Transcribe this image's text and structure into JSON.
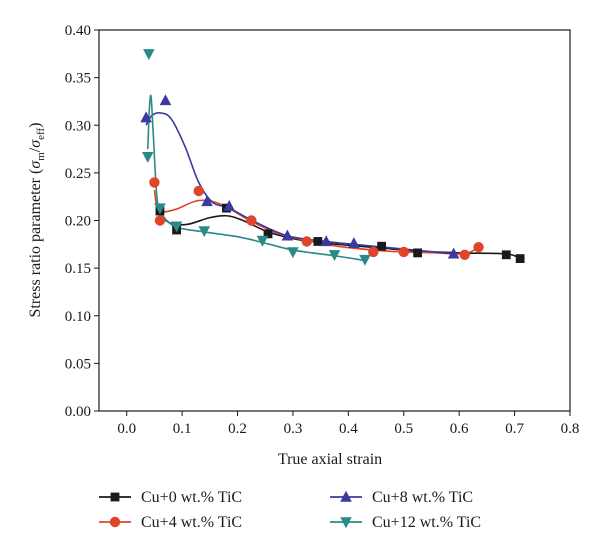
{
  "chart_data": {
    "type": "scatter",
    "xlabel": "True axial strain",
    "ylabel": "Stress ratio parameter (σm/σeff)",
    "ylabel_parts": {
      "prefix": "Stress ratio parameter (",
      "sigma1": "σ",
      "sub1": "m",
      "slash": "/",
      "sigma2": "σ",
      "sub2": "eff",
      "suffix": ")"
    },
    "xlim": [
      -0.05,
      0.8
    ],
    "ylim": [
      0.0,
      0.4
    ],
    "x_ticks": [
      "0.0",
      "0.1",
      "0.2",
      "0.3",
      "0.4",
      "0.5",
      "0.6",
      "0.7",
      "0.8"
    ],
    "y_ticks": [
      "0.00",
      "0.05",
      "0.10",
      "0.15",
      "0.20",
      "0.25",
      "0.30",
      "0.35",
      "0.40"
    ],
    "x_tick_values": [
      0.0,
      0.1,
      0.2,
      0.3,
      0.4,
      0.5,
      0.6,
      0.7,
      0.8
    ],
    "y_tick_values": [
      0.0,
      0.05,
      0.1,
      0.15,
      0.2,
      0.25,
      0.3,
      0.35,
      0.4
    ],
    "grid": false,
    "legend_position": "bottom",
    "series": [
      {
        "name": "Cu+0 wt.% TiC",
        "color": "#1a1a1a",
        "marker": "square",
        "points": [
          [
            0.06,
            0.21
          ],
          [
            0.09,
            0.19
          ],
          [
            0.18,
            0.213
          ],
          [
            0.255,
            0.186
          ],
          [
            0.345,
            0.178
          ],
          [
            0.46,
            0.173
          ],
          [
            0.525,
            0.166
          ],
          [
            0.685,
            0.164
          ],
          [
            0.71,
            0.16
          ]
        ],
        "curve": [
          [
            0.06,
            0.205
          ],
          [
            0.08,
            0.197
          ],
          [
            0.11,
            0.196
          ],
          [
            0.15,
            0.203
          ],
          [
            0.18,
            0.205
          ],
          [
            0.21,
            0.2
          ],
          [
            0.255,
            0.188
          ],
          [
            0.3,
            0.181
          ],
          [
            0.345,
            0.177
          ],
          [
            0.4,
            0.174
          ],
          [
            0.46,
            0.171
          ],
          [
            0.525,
            0.168
          ],
          [
            0.6,
            0.166
          ],
          [
            0.685,
            0.165
          ],
          [
            0.71,
            0.16
          ]
        ]
      },
      {
        "name": "Cu+4 wt.% TiC",
        "color": "#e0442a",
        "marker": "circle",
        "points": [
          [
            0.05,
            0.24
          ],
          [
            0.06,
            0.2
          ],
          [
            0.13,
            0.231
          ],
          [
            0.225,
            0.2
          ],
          [
            0.325,
            0.178
          ],
          [
            0.445,
            0.167
          ],
          [
            0.5,
            0.167
          ],
          [
            0.61,
            0.164
          ],
          [
            0.635,
            0.172
          ]
        ],
        "curve": [
          [
            0.05,
            0.232
          ],
          [
            0.055,
            0.213
          ],
          [
            0.065,
            0.209
          ],
          [
            0.09,
            0.212
          ],
          [
            0.13,
            0.221
          ],
          [
            0.17,
            0.217
          ],
          [
            0.225,
            0.199
          ],
          [
            0.275,
            0.186
          ],
          [
            0.325,
            0.179
          ],
          [
            0.38,
            0.173
          ],
          [
            0.445,
            0.169
          ],
          [
            0.5,
            0.167
          ],
          [
            0.56,
            0.166
          ],
          [
            0.61,
            0.165
          ],
          [
            0.635,
            0.172
          ]
        ]
      },
      {
        "name": "Cu+8 wt.% TiC",
        "color": "#3a3aa0",
        "marker": "triangle-up",
        "points": [
          [
            0.035,
            0.308
          ],
          [
            0.07,
            0.326
          ],
          [
            0.145,
            0.22
          ],
          [
            0.185,
            0.215
          ],
          [
            0.29,
            0.184
          ],
          [
            0.36,
            0.178
          ],
          [
            0.41,
            0.176
          ],
          [
            0.59,
            0.165
          ]
        ],
        "curve": [
          [
            0.035,
            0.3
          ],
          [
            0.045,
            0.31
          ],
          [
            0.06,
            0.313
          ],
          [
            0.08,
            0.307
          ],
          [
            0.105,
            0.278
          ],
          [
            0.13,
            0.24
          ],
          [
            0.155,
            0.219
          ],
          [
            0.185,
            0.213
          ],
          [
            0.23,
            0.199
          ],
          [
            0.29,
            0.184
          ],
          [
            0.36,
            0.178
          ],
          [
            0.41,
            0.175
          ],
          [
            0.5,
            0.17
          ],
          [
            0.59,
            0.165
          ]
        ]
      },
      {
        "name": "Cu+12 wt.% TiC",
        "color": "#2a8a88",
        "marker": "triangle-down",
        "points": [
          [
            0.04,
            0.375
          ],
          [
            0.038,
            0.267
          ],
          [
            0.06,
            0.213
          ],
          [
            0.09,
            0.194
          ],
          [
            0.14,
            0.189
          ],
          [
            0.245,
            0.179
          ],
          [
            0.3,
            0.167
          ],
          [
            0.375,
            0.164
          ],
          [
            0.43,
            0.159
          ]
        ],
        "curve": [
          [
            0.038,
            0.275
          ],
          [
            0.041,
            0.318
          ],
          [
            0.044,
            0.33
          ],
          [
            0.048,
            0.29
          ],
          [
            0.055,
            0.222
          ],
          [
            0.065,
            0.205
          ],
          [
            0.09,
            0.193
          ],
          [
            0.14,
            0.188
          ],
          [
            0.2,
            0.183
          ],
          [
            0.245,
            0.177
          ],
          [
            0.3,
            0.169
          ],
          [
            0.375,
            0.163
          ],
          [
            0.43,
            0.158
          ]
        ]
      }
    ]
  }
}
